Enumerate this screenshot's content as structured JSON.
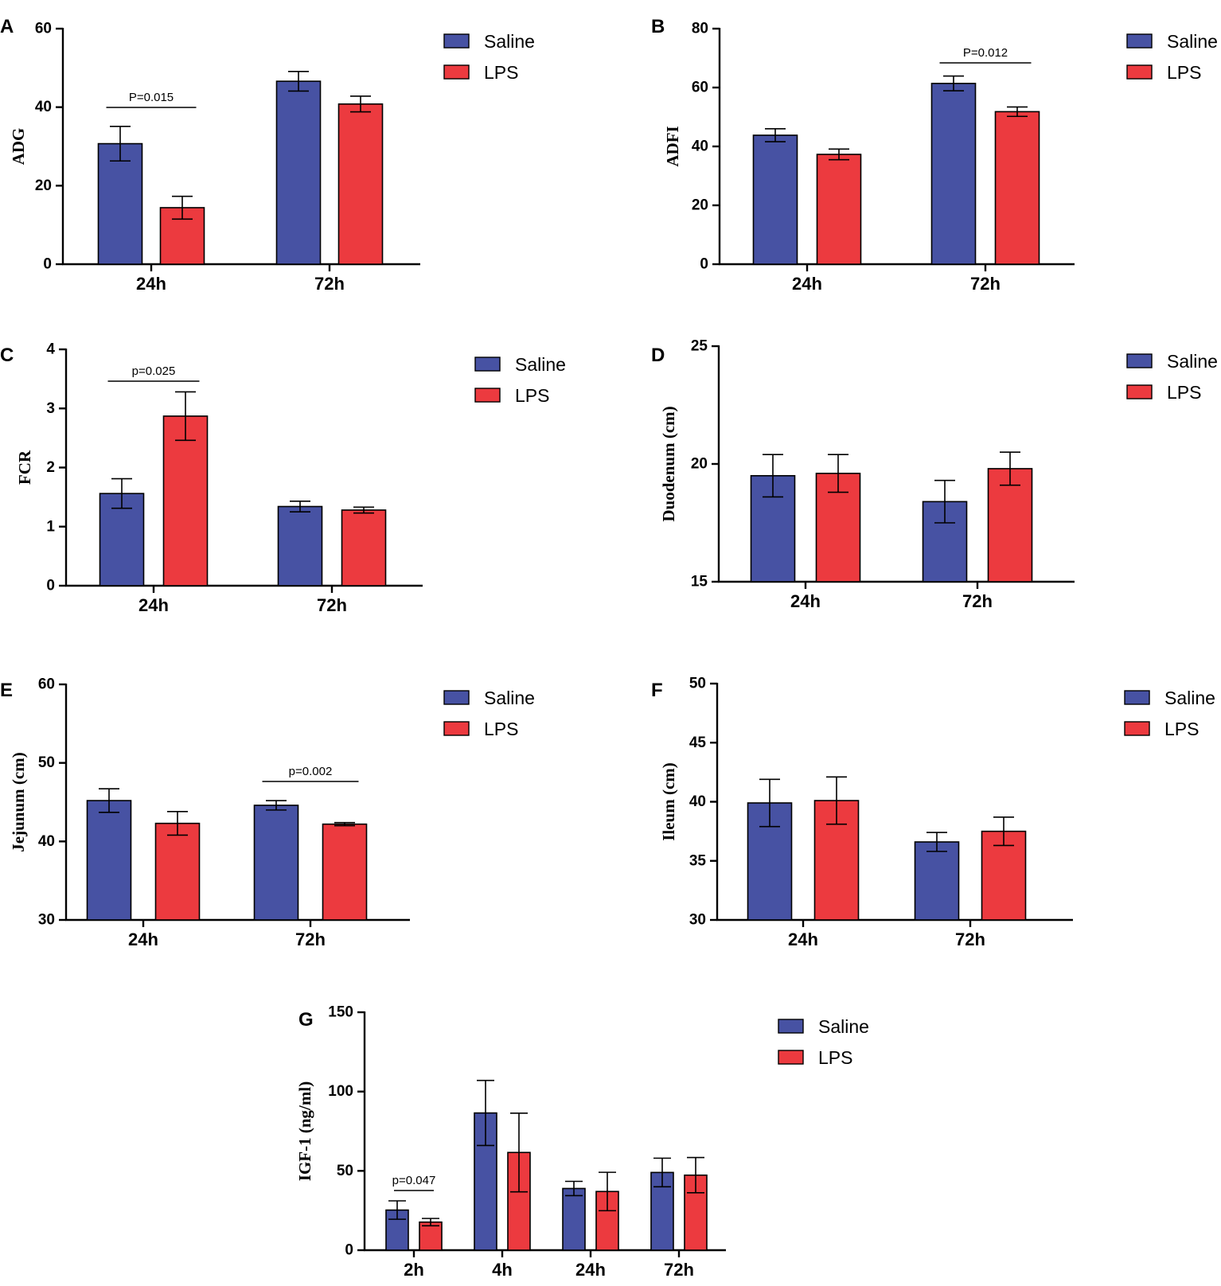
{
  "colors": {
    "saline": "#4752A3",
    "lps": "#EC3A3F"
  },
  "legend": {
    "saline": "Saline",
    "lps": "LPS"
  },
  "chart_data": [
    {
      "panel": "A",
      "type": "bar",
      "ylabel": "ADG",
      "categories": [
        "24h",
        "72h"
      ],
      "ylim": [
        0,
        60
      ],
      "yticks": [
        0,
        20,
        40,
        60
      ],
      "series": [
        {
          "name": "Saline",
          "values": [
            30.7,
            46.6
          ],
          "errors": [
            4.4,
            2.5
          ]
        },
        {
          "name": "LPS",
          "values": [
            14.4,
            40.8
          ],
          "errors": [
            2.9,
            2.0
          ]
        }
      ],
      "annotations": [
        {
          "text": "P=0.015",
          "category": 0
        }
      ]
    },
    {
      "panel": "B",
      "type": "bar",
      "ylabel": "ADFI",
      "categories": [
        "24h",
        "72h"
      ],
      "ylim": [
        0,
        80
      ],
      "yticks": [
        0,
        20,
        40,
        60,
        80
      ],
      "series": [
        {
          "name": "Saline",
          "values": [
            43.8,
            61.4
          ],
          "errors": [
            2.2,
            2.5
          ]
        },
        {
          "name": "LPS",
          "values": [
            37.3,
            51.8
          ],
          "errors": [
            1.8,
            1.6
          ]
        }
      ],
      "annotations": [
        {
          "text": "P=0.012",
          "category": 1
        }
      ]
    },
    {
      "panel": "C",
      "type": "bar",
      "ylabel": "FCR",
      "categories": [
        "24h",
        "72h"
      ],
      "ylim": [
        0,
        4
      ],
      "yticks": [
        0,
        1,
        2,
        3,
        4
      ],
      "series": [
        {
          "name": "Saline",
          "values": [
            1.56,
            1.34
          ],
          "errors": [
            0.25,
            0.09
          ]
        },
        {
          "name": "LPS",
          "values": [
            2.87,
            1.28
          ],
          "errors": [
            0.41,
            0.05
          ]
        }
      ],
      "annotations": [
        {
          "text": "p=0.025",
          "category": 0
        }
      ]
    },
    {
      "panel": "D",
      "type": "bar",
      "ylabel": "Duodenum (cm)",
      "categories": [
        "24h",
        "72h"
      ],
      "ylim": [
        15,
        25
      ],
      "yticks": [
        15,
        20,
        25
      ],
      "series": [
        {
          "name": "Saline",
          "values": [
            19.5,
            18.4
          ],
          "errors": [
            0.9,
            0.9
          ]
        },
        {
          "name": "LPS",
          "values": [
            19.6,
            19.8
          ],
          "errors": [
            0.8,
            0.7
          ]
        }
      ],
      "annotations": []
    },
    {
      "panel": "E",
      "type": "bar",
      "ylabel": "Jejunum (cm)",
      "categories": [
        "24h",
        "72h"
      ],
      "ylim": [
        30,
        60
      ],
      "yticks": [
        30,
        40,
        50,
        60
      ],
      "series": [
        {
          "name": "Saline",
          "values": [
            45.2,
            44.6
          ],
          "errors": [
            1.5,
            0.6
          ]
        },
        {
          "name": "LPS",
          "values": [
            42.3,
            42.2
          ],
          "errors": [
            1.5,
            0.2
          ]
        }
      ],
      "annotations": [
        {
          "text": "p=0.002",
          "category": 1
        }
      ]
    },
    {
      "panel": "F",
      "type": "bar",
      "ylabel": "Ileum (cm)",
      "categories": [
        "24h",
        "72h"
      ],
      "ylim": [
        30,
        50
      ],
      "yticks": [
        30,
        35,
        40,
        45,
        50
      ],
      "series": [
        {
          "name": "Saline",
          "values": [
            39.9,
            36.6
          ],
          "errors": [
            2.0,
            0.8
          ]
        },
        {
          "name": "LPS",
          "values": [
            40.1,
            37.5
          ],
          "errors": [
            2.0,
            1.2
          ]
        }
      ],
      "annotations": []
    },
    {
      "panel": "G",
      "type": "bar",
      "ylabel": "IGF-1 (ng/ml)",
      "categories": [
        "2h",
        "4h",
        "24h",
        "72h"
      ],
      "ylim": [
        0,
        150
      ],
      "yticks": [
        0,
        50,
        100,
        150
      ],
      "series": [
        {
          "name": "Saline",
          "values": [
            25.3,
            86.5,
            38.9,
            49.0
          ],
          "errors": [
            5.8,
            20.5,
            4.5,
            9.0
          ]
        },
        {
          "name": "LPS",
          "values": [
            17.7,
            61.6,
            37.0,
            47.3
          ],
          "errors": [
            2.3,
            24.8,
            12.1,
            11.1
          ]
        }
      ],
      "annotations": [
        {
          "text": "p=0.047",
          "category": 0
        }
      ]
    }
  ]
}
